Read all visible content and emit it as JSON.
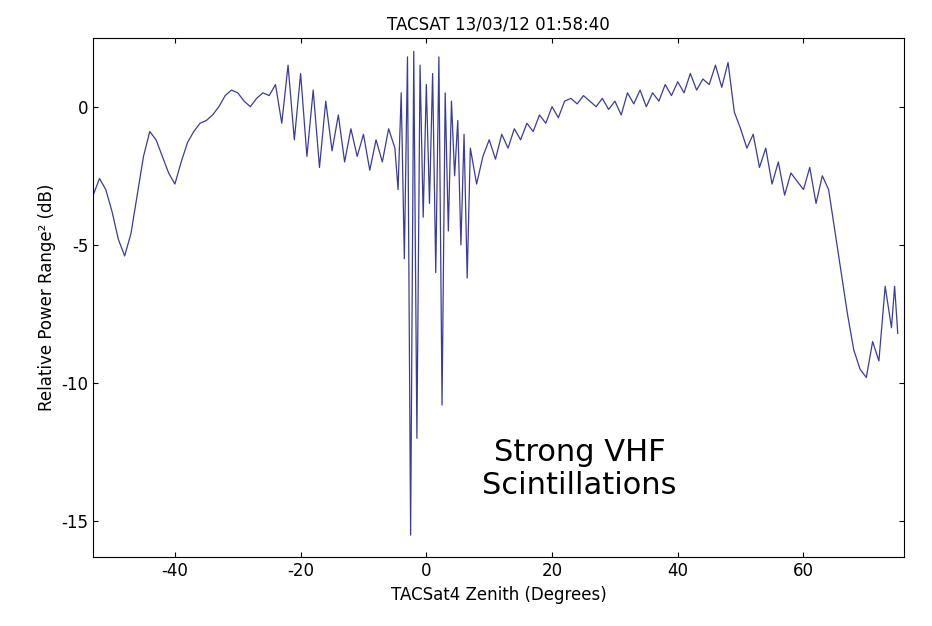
{
  "chart_data": {
    "type": "line",
    "title": "TACSAT 13/03/12 01:58:40",
    "x_label": "TACSat4 Zenith (Degrees)",
    "y_label": "Relative Power Range² (dB)",
    "annotation": "Strong VHF\nScintillations",
    "color": "#3b3b9c",
    "grid": false,
    "xlim": [
      -53,
      76
    ],
    "ylim": [
      -16.3,
      2.5
    ],
    "xticks": [
      -40,
      -20,
      0,
      20,
      40,
      60
    ],
    "yticks": [
      -15,
      -10,
      -5,
      0
    ],
    "x": [
      -53,
      -52,
      -51,
      -50,
      -49,
      -48,
      -47,
      -46,
      -45,
      -44,
      -43,
      -42,
      -41,
      -40,
      -39,
      -38,
      -37,
      -36,
      -35,
      -34,
      -33,
      -32,
      -31,
      -30,
      -29,
      -28,
      -27,
      -26,
      -25,
      -24,
      -23,
      -22,
      -21,
      -20,
      -19,
      -18,
      -17,
      -16,
      -15,
      -14,
      -13,
      -12,
      -11,
      -10,
      -9,
      -8,
      -7,
      -6,
      -5,
      -4.5,
      -4,
      -3.5,
      -3,
      -2.5,
      -2,
      -1.5,
      -1,
      -0.5,
      0,
      0.5,
      1,
      1.5,
      2,
      2.5,
      3,
      3.5,
      4,
      4.5,
      5,
      5.5,
      6,
      6.5,
      7,
      8,
      9,
      10,
      11,
      12,
      13,
      14,
      15,
      16,
      17,
      18,
      19,
      20,
      21,
      22,
      23,
      24,
      25,
      26,
      27,
      28,
      29,
      30,
      31,
      32,
      33,
      34,
      35,
      36,
      37,
      38,
      39,
      40,
      41,
      42,
      43,
      44,
      45,
      46,
      47,
      48,
      49,
      50,
      51,
      52,
      53,
      54,
      55,
      56,
      57,
      58,
      59,
      60,
      61,
      62,
      63,
      64,
      65,
      66,
      67,
      68,
      69,
      70,
      71,
      72,
      73,
      74,
      74.5,
      75
    ],
    "values": [
      -3.2,
      -2.6,
      -3.0,
      -3.8,
      -4.8,
      -5.4,
      -4.6,
      -3.2,
      -1.8,
      -0.9,
      -1.2,
      -1.8,
      -2.4,
      -2.8,
      -2.0,
      -1.3,
      -0.9,
      -0.6,
      -0.5,
      -0.3,
      0.0,
      0.4,
      0.6,
      0.5,
      0.2,
      0.0,
      0.3,
      0.5,
      0.4,
      0.8,
      -0.6,
      1.5,
      -1.2,
      1.2,
      -1.8,
      0.6,
      -2.2,
      0.2,
      -1.6,
      -0.3,
      -2.0,
      -0.8,
      -1.8,
      -1.0,
      -2.3,
      -1.2,
      -2.0,
      -0.8,
      -1.5,
      -3.0,
      0.5,
      -5.5,
      1.8,
      -15.5,
      2.0,
      -12.0,
      1.5,
      -4.0,
      0.8,
      -3.5,
      1.2,
      -6.0,
      1.8,
      -10.8,
      0.5,
      -4.5,
      0.2,
      -2.5,
      -0.5,
      -5.0,
      -1.0,
      -6.2,
      -1.5,
      -2.8,
      -1.8,
      -1.2,
      -1.9,
      -1.0,
      -1.5,
      -0.8,
      -1.2,
      -0.6,
      -0.9,
      -0.3,
      -0.6,
      0.0,
      -0.4,
      0.2,
      0.3,
      0.1,
      0.4,
      0.2,
      0.0,
      0.3,
      -0.1,
      0.2,
      -0.3,
      0.5,
      0.1,
      0.6,
      0.0,
      0.5,
      0.2,
      0.8,
      0.4,
      0.9,
      0.5,
      1.2,
      0.6,
      1.0,
      0.8,
      1.5,
      0.7,
      1.6,
      -0.2,
      -0.8,
      -1.5,
      -1.0,
      -2.2,
      -1.5,
      -2.8,
      -2.0,
      -3.2,
      -2.4,
      -2.7,
      -3.0,
      -2.2,
      -3.5,
      -2.5,
      -3.0,
      -4.5,
      -6.0,
      -7.5,
      -8.8,
      -9.5,
      -9.8,
      -8.5,
      -9.2,
      -6.5,
      -8.0,
      -6.5,
      -8.2
    ]
  }
}
